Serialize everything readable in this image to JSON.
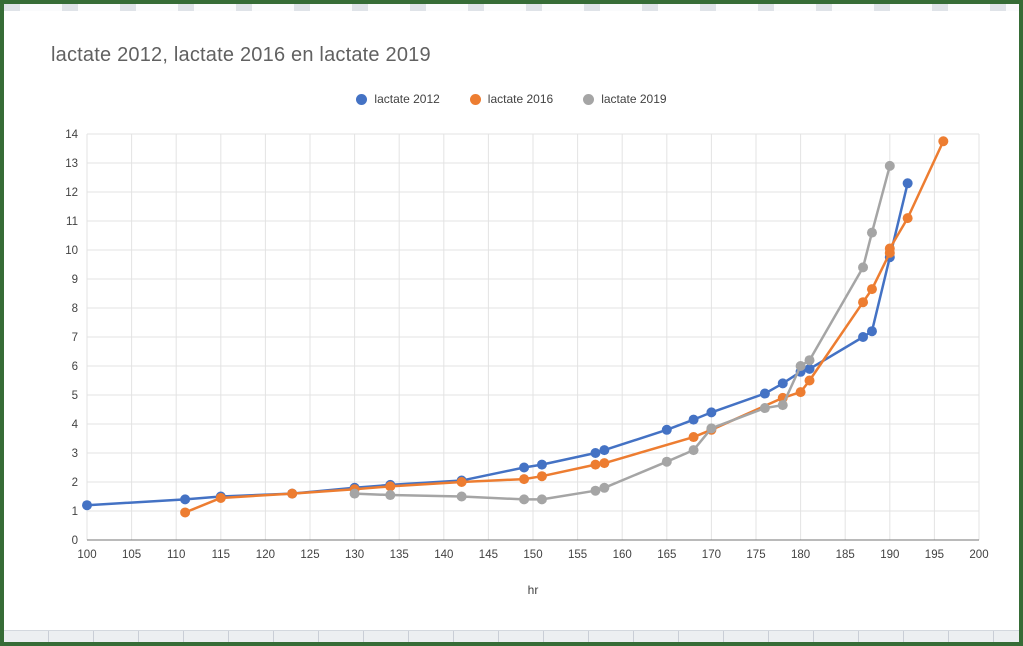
{
  "window": {
    "border_color": "#366c36",
    "background": "#ffffff"
  },
  "chart_data": {
    "type": "line",
    "title": "lactate 2012, lactate 2016 en lactate 2019",
    "xlabel": "hr",
    "ylabel": "",
    "xlim": [
      100,
      200
    ],
    "ylim": [
      0,
      14
    ],
    "x_ticks": [
      100,
      105,
      110,
      115,
      120,
      125,
      130,
      135,
      140,
      145,
      150,
      155,
      160,
      165,
      170,
      175,
      180,
      185,
      190,
      195,
      200
    ],
    "y_ticks": [
      0,
      1,
      2,
      3,
      4,
      5,
      6,
      7,
      8,
      9,
      10,
      11,
      12,
      13,
      14
    ],
    "grid": true,
    "grid_color": "#e3e3e3",
    "axis_line_color": "#757575",
    "legend_position": "top",
    "title_color": "#616161",
    "tick_label_color": "#424242",
    "series": [
      {
        "name": "lactate 2012",
        "color": "#4472C4",
        "points": [
          [
            100,
            1.2
          ],
          [
            111,
            1.4
          ],
          [
            115,
            1.5
          ],
          [
            123,
            1.6
          ],
          [
            130,
            1.8
          ],
          [
            134,
            1.9
          ],
          [
            142,
            2.05
          ],
          [
            149,
            2.5
          ],
          [
            151,
            2.6
          ],
          [
            157,
            3.0
          ],
          [
            158,
            3.1
          ],
          [
            165,
            3.8
          ],
          [
            168,
            4.15
          ],
          [
            170,
            4.4
          ],
          [
            176,
            5.05
          ],
          [
            178,
            5.4
          ],
          [
            180,
            5.8
          ],
          [
            181,
            5.9
          ],
          [
            187,
            7.0
          ],
          [
            188,
            7.2
          ],
          [
            190,
            9.75
          ],
          [
            192,
            12.3
          ]
        ]
      },
      {
        "name": "lactate 2016",
        "color": "#ED7D31",
        "points": [
          [
            111,
            0.95
          ],
          [
            115,
            1.45
          ],
          [
            123,
            1.6
          ],
          [
            130,
            1.75
          ],
          [
            134,
            1.85
          ],
          [
            142,
            2.0
          ],
          [
            149,
            2.1
          ],
          [
            151,
            2.2
          ],
          [
            157,
            2.6
          ],
          [
            158,
            2.65
          ],
          [
            168,
            3.55
          ],
          [
            170,
            3.8
          ],
          [
            178,
            4.9
          ],
          [
            180,
            5.1
          ],
          [
            181,
            5.5
          ],
          [
            187,
            8.2
          ],
          [
            188,
            8.65
          ],
          [
            190,
            9.9
          ],
          [
            190,
            10.05
          ],
          [
            192,
            11.1
          ],
          [
            196,
            13.75
          ]
        ]
      },
      {
        "name": "lactate 2019",
        "color": "#A5A5A5",
        "points": [
          [
            130,
            1.6
          ],
          [
            134,
            1.55
          ],
          [
            142,
            1.5
          ],
          [
            149,
            1.4
          ],
          [
            151,
            1.4
          ],
          [
            157,
            1.7
          ],
          [
            158,
            1.8
          ],
          [
            165,
            2.7
          ],
          [
            168,
            3.1
          ],
          [
            170,
            3.85
          ],
          [
            176,
            4.55
          ],
          [
            178,
            4.65
          ],
          [
            180,
            6.0
          ],
          [
            181,
            6.2
          ],
          [
            187,
            9.4
          ],
          [
            188,
            10.6
          ],
          [
            190,
            12.9
          ]
        ]
      }
    ]
  }
}
